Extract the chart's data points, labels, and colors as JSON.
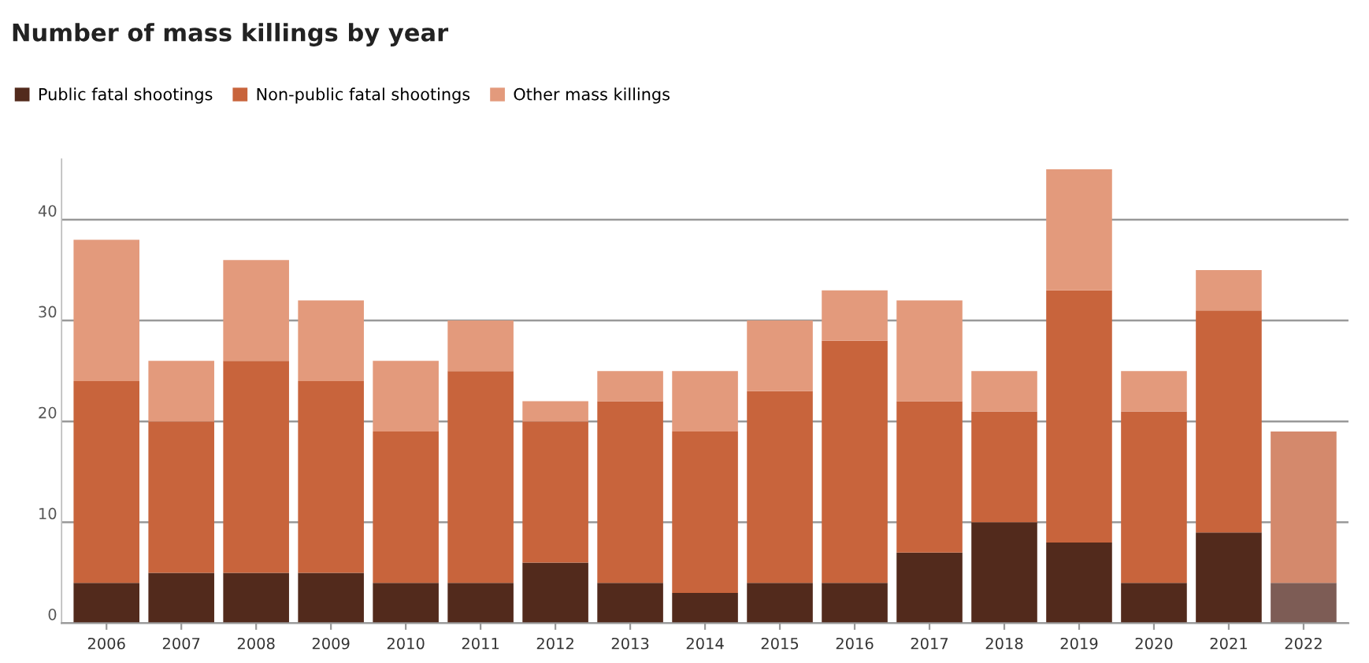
{
  "chart_data": {
    "type": "bar",
    "title": "Number of mass killings by year",
    "stacked": true,
    "categories": [
      "2006",
      "2007",
      "2008",
      "2009",
      "2010",
      "2011",
      "2012",
      "2013",
      "2014",
      "2015",
      "2016",
      "2017",
      "2018",
      "2019",
      "2020",
      "2021",
      "2022"
    ],
    "series": [
      {
        "name": "Public fatal shootings",
        "color": "#522a1c",
        "colors": [
          "#522a1c",
          "#522a1c",
          "#522a1c",
          "#522a1c",
          "#522a1c",
          "#522a1c",
          "#522a1c",
          "#522a1c",
          "#522a1c",
          "#522a1c",
          "#522a1c",
          "#522a1c",
          "#522a1c",
          "#522a1c",
          "#522a1c",
          "#522a1c",
          "#7d5c55"
        ],
        "values": [
          4,
          5,
          5,
          5,
          4,
          4,
          6,
          4,
          3,
          4,
          4,
          7,
          10,
          8,
          4,
          9,
          4
        ]
      },
      {
        "name": "Non-public fatal shootings",
        "color": "#c8643c",
        "colors": [
          "#c8643c",
          "#c8643c",
          "#c8643c",
          "#c8643c",
          "#c8643c",
          "#c8643c",
          "#c8643c",
          "#c8643c",
          "#c8643c",
          "#c8643c",
          "#c8643c",
          "#c8643c",
          "#c8643c",
          "#c8643c",
          "#c8643c",
          "#c8643c",
          "#d4896c"
        ],
        "values": [
          20,
          15,
          21,
          19,
          15,
          21,
          14,
          18,
          16,
          19,
          24,
          15,
          11,
          25,
          17,
          22,
          15
        ]
      },
      {
        "name": "Other mass killings",
        "color": "#e39a7c",
        "values": [
          14,
          6,
          10,
          8,
          7,
          5,
          2,
          3,
          6,
          7,
          5,
          10,
          4,
          12,
          4,
          4,
          0
        ]
      }
    ],
    "ylim": [
      0,
      46
    ],
    "yticks": [
      0,
      10,
      20,
      30,
      40
    ],
    "grid": "y",
    "legend": "top left"
  }
}
